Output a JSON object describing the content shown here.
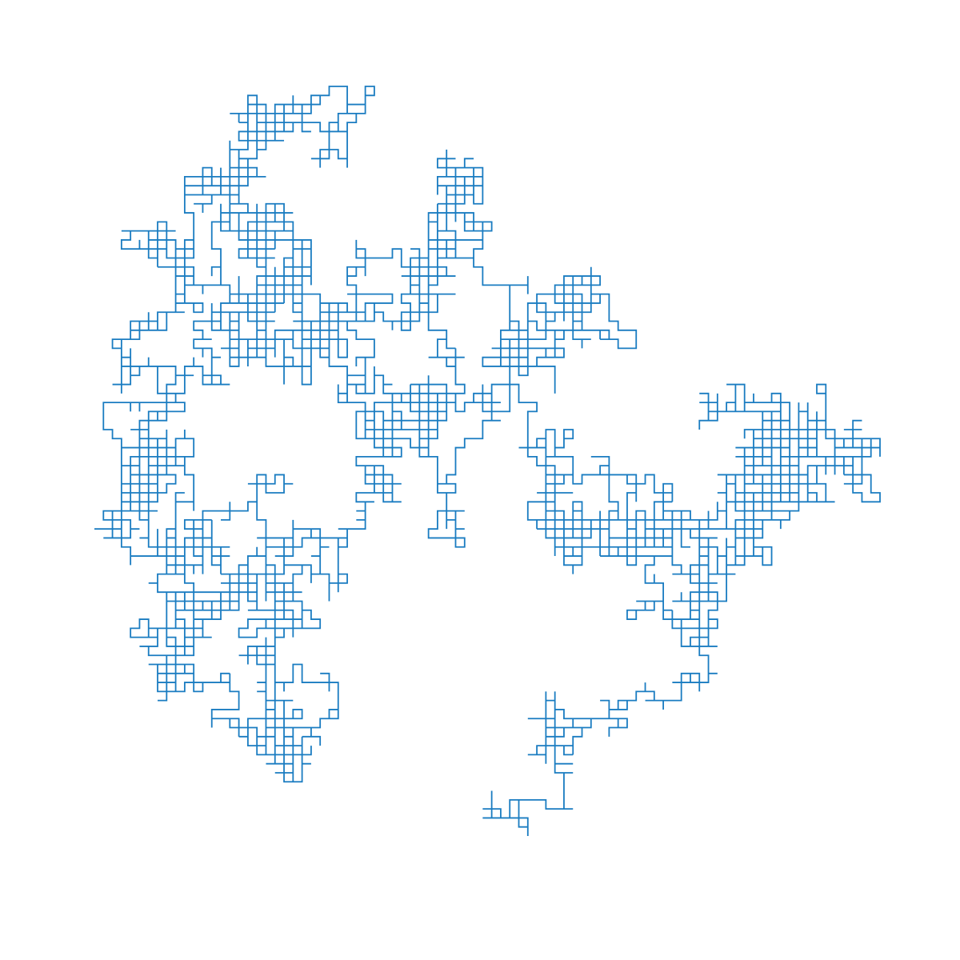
{
  "figure": {
    "type": "random-walk-path",
    "description_visible": false
  },
  "style": {
    "background": "#ffffff",
    "line_color": "#1a7cc1"
  },
  "walk": {
    "kind": "lattice-random-walk",
    "seed": 20240917,
    "n_steps": 7000
  }
}
